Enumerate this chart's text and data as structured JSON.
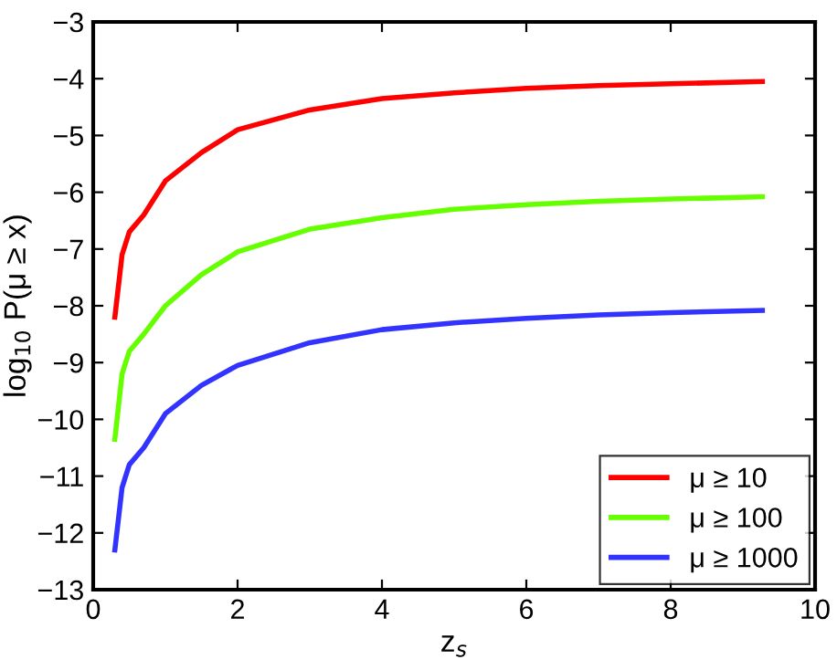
{
  "chart_data": {
    "type": "line",
    "xlabel": "z$_{s}$",
    "ylabel": "log$_{10}$ P(μ ≥ x)",
    "xlim": [
      0,
      10
    ],
    "ylim": [
      -13,
      -3
    ],
    "xticks": [
      0,
      2,
      4,
      6,
      8,
      10
    ],
    "yticks": [
      {
        "value": -13,
        "label": "−13"
      },
      {
        "value": -12,
        "label": "−12"
      },
      {
        "value": -11,
        "label": "−11"
      },
      {
        "value": -10,
        "label": "−10"
      },
      {
        "value": -9,
        "label": "−9"
      },
      {
        "value": -8,
        "label": "−8"
      },
      {
        "value": -7,
        "label": "−7"
      },
      {
        "value": -6,
        "label": "−6"
      },
      {
        "value": -5,
        "label": "−5"
      },
      {
        "value": -4,
        "label": "−4"
      },
      {
        "value": -3,
        "label": "−3"
      }
    ],
    "grid": false,
    "legend": "bottom right",
    "marker": "none",
    "line_style": "solid",
    "x": [
      0.3,
      0.4,
      0.5,
      0.7,
      1.0,
      1.5,
      2,
      3,
      4,
      5,
      6,
      7,
      8,
      9.27
    ],
    "series": [
      {
        "name": "μ ≥ 10",
        "color": "#ff0000",
        "values": [
          -8.2,
          -7.1,
          -6.7,
          -6.4,
          -5.8,
          -5.3,
          -4.9,
          -4.55,
          -4.35,
          -4.25,
          -4.17,
          -4.12,
          -4.09,
          -4.05
        ]
      },
      {
        "name": "μ ≥ 100",
        "color": "#66ff00",
        "values": [
          -10.35,
          -9.2,
          -8.8,
          -8.5,
          -8.0,
          -7.45,
          -7.05,
          -6.65,
          -6.45,
          -6.3,
          -6.22,
          -6.16,
          -6.12,
          -6.08
        ]
      },
      {
        "name": "μ ≥ 1000",
        "color": "#3333ff",
        "values": [
          -12.3,
          -11.2,
          -10.8,
          -10.5,
          -9.9,
          -9.4,
          -9.05,
          -8.65,
          -8.42,
          -8.3,
          -8.22,
          -8.16,
          -8.12,
          -8.08
        ]
      }
    ]
  }
}
